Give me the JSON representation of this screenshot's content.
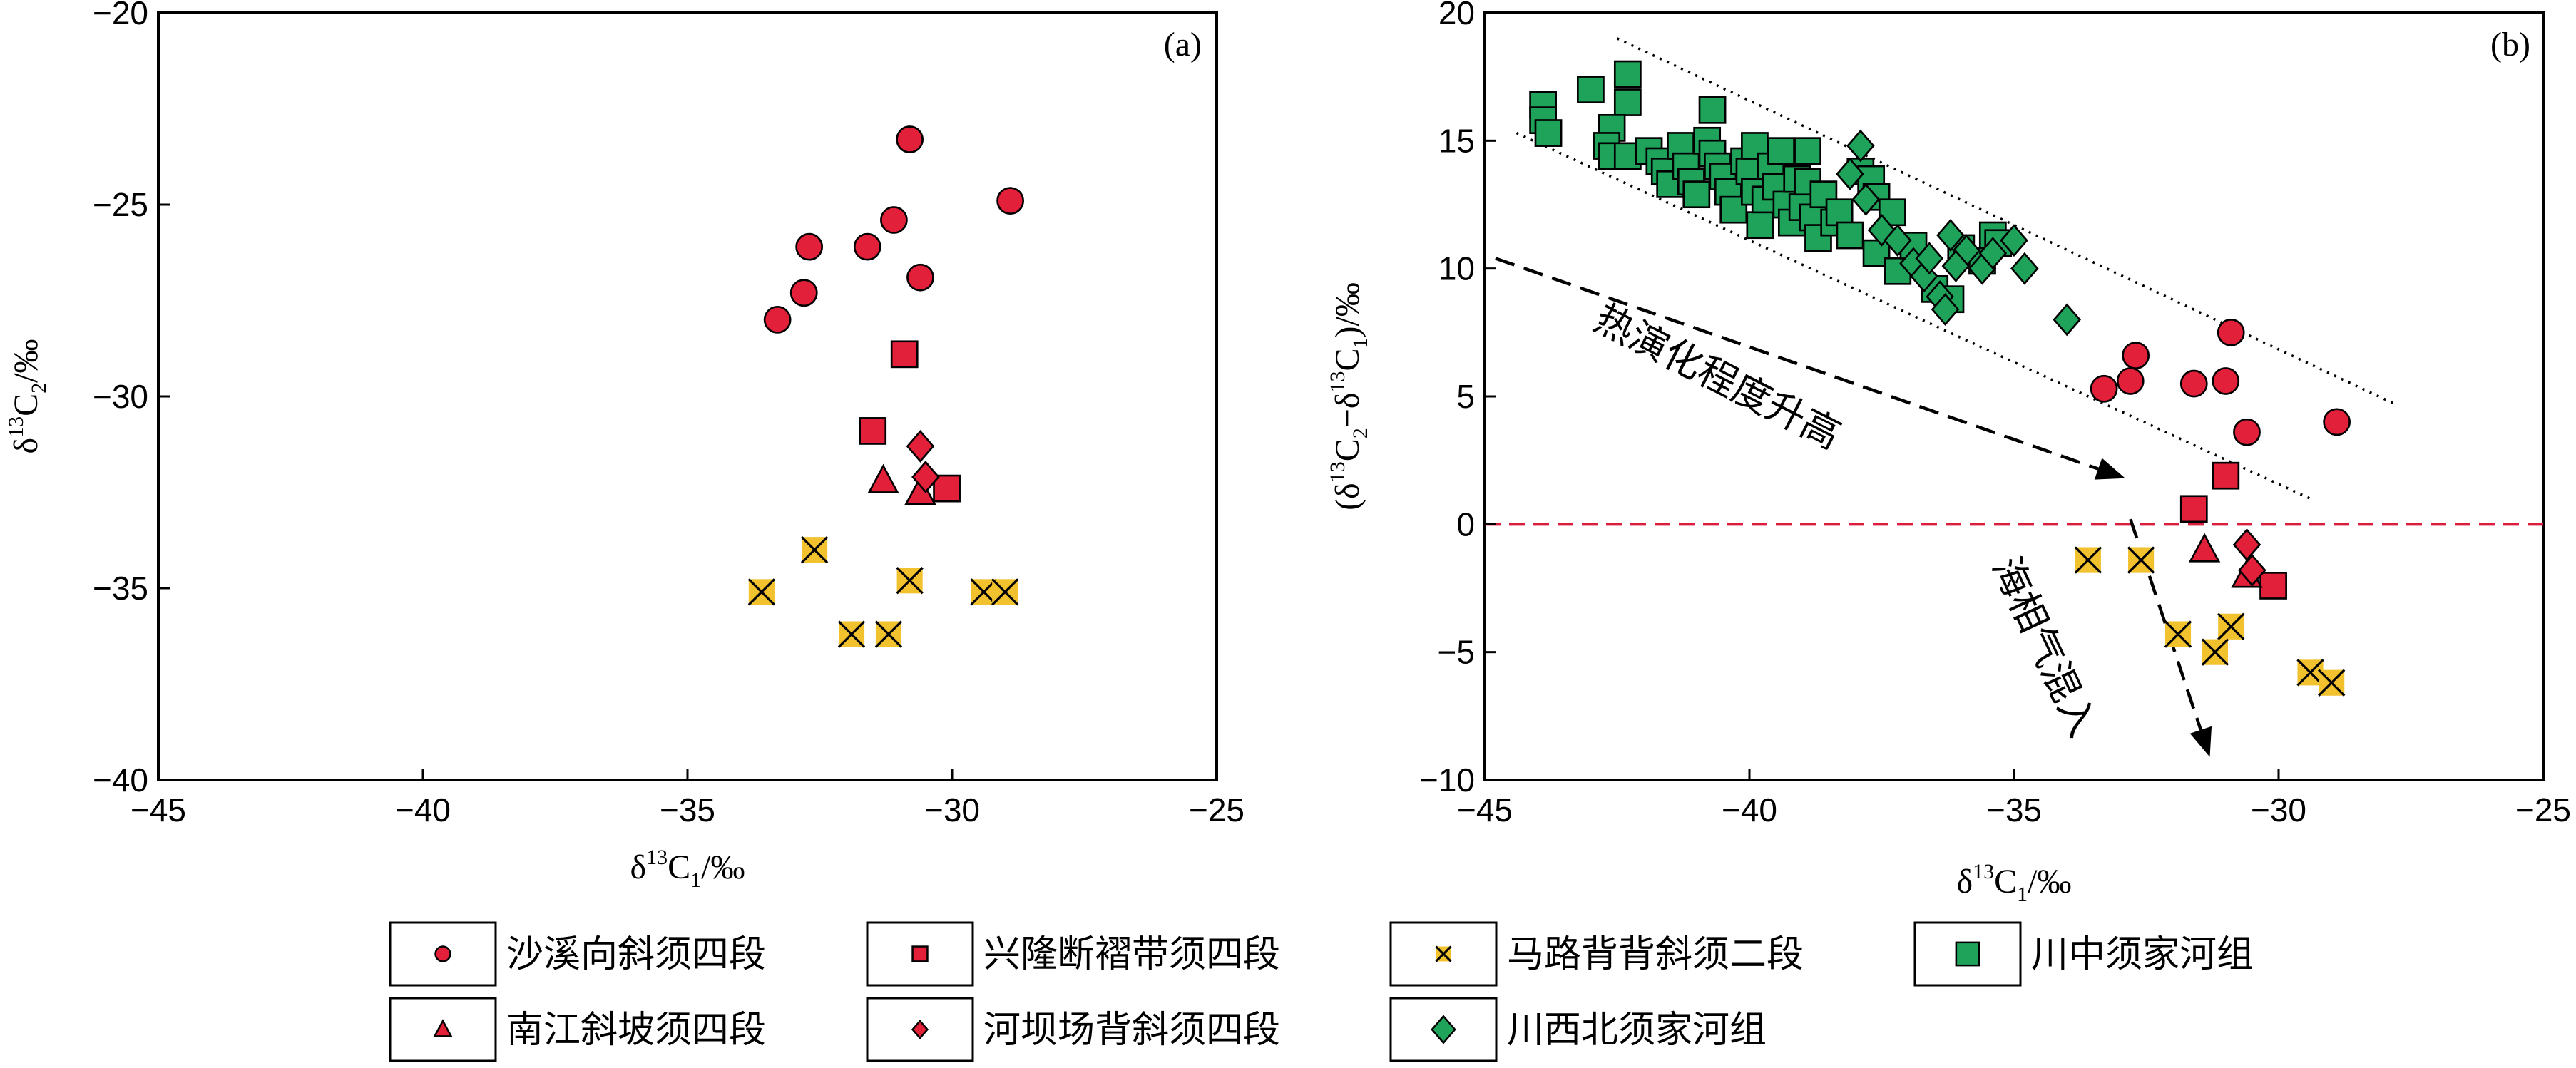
{
  "colors": {
    "red": "#e2203a",
    "yellow": "#f2c12e",
    "green": "#1fa35a",
    "dashed_zero": "#d81e3c",
    "axis": "#000000"
  },
  "chart_data": [
    {
      "panel": "a",
      "panel_tag": "(a)",
      "type": "scatter",
      "xlabel_base": "δ",
      "xlabel_sup": "13",
      "xlabel_main": "C",
      "xlabel_sub": "1",
      "xlabel_tail": "/‰",
      "ylabel_base": "δ",
      "ylabel_sup": "13",
      "ylabel_main": "C",
      "ylabel_sub": "2",
      "ylabel_tail": "/‰",
      "xlim": [
        -45,
        -25
      ],
      "ylim": [
        -40,
        -20
      ],
      "xticks": [
        -45,
        -40,
        -35,
        -30,
        -25
      ],
      "yticks": [
        -40,
        -35,
        -30,
        -25,
        -20
      ],
      "series": [
        {
          "key": "shaxi",
          "marker": "circle",
          "color": "red",
          "points": [
            [
              -30.8,
              -23.3
            ],
            [
              -28.9,
              -24.9
            ],
            [
              -31.1,
              -25.4
            ],
            [
              -32.7,
              -26.1
            ],
            [
              -31.6,
              -26.1
            ],
            [
              -30.6,
              -26.9
            ],
            [
              -32.8,
              -27.3
            ],
            [
              -33.3,
              -28.0
            ]
          ]
        },
        {
          "key": "xinglong",
          "marker": "square",
          "color": "red",
          "points": [
            [
              -30.9,
              -28.9
            ],
            [
              -31.5,
              -30.9
            ],
            [
              -30.1,
              -32.4
            ]
          ]
        },
        {
          "key": "nanjiang",
          "marker": "triangle",
          "color": "red",
          "points": [
            [
              -31.3,
              -32.2
            ],
            [
              -30.6,
              -32.5
            ]
          ]
        },
        {
          "key": "heba",
          "marker": "diamond",
          "color": "red",
          "points": [
            [
              -30.6,
              -31.3
            ],
            [
              -30.5,
              -32.1
            ]
          ]
        },
        {
          "key": "malu",
          "marker": "xsquare",
          "color": "yellow",
          "points": [
            [
              -33.6,
              -35.1
            ],
            [
              -32.6,
              -34.0
            ],
            [
              -30.8,
              -34.8
            ],
            [
              -31.9,
              -36.2
            ],
            [
              -31.2,
              -36.2
            ],
            [
              -29.4,
              -35.1
            ],
            [
              -29.0,
              -35.1
            ]
          ]
        }
      ]
    },
    {
      "panel": "b",
      "panel_tag": "(b)",
      "type": "scatter",
      "xlabel_base": "δ",
      "xlabel_sup": "13",
      "xlabel_main": "C",
      "xlabel_sub": "1",
      "xlabel_tail": "/‰",
      "ylabel_open": "(δ",
      "ylabel_sup1": "13",
      "ylabel_c1": "C",
      "ylabel_sub1": "2",
      "ylabel_mid": "−δ",
      "ylabel_sup2": "13",
      "ylabel_c2": "C",
      "ylabel_sub2": "1",
      "ylabel_tail": ")/‰",
      "xlim": [
        -45,
        -25
      ],
      "ylim": [
        -10,
        20
      ],
      "xticks": [
        -45,
        -40,
        -35,
        -30,
        -25
      ],
      "yticks": [
        -10,
        -5,
        0,
        5,
        10,
        15,
        20
      ],
      "zero_line": 0,
      "guide_lines": [
        {
          "x1": -42.5,
          "y1": 19.0,
          "x2": -27.8,
          "y2": 4.7
        },
        {
          "x1": -44.4,
          "y1": 15.3,
          "x2": -29.4,
          "y2": 1.0
        }
      ],
      "arrows": [
        {
          "x1": -44.8,
          "y1": 10.4,
          "x2": -32.9,
          "y2": 1.8
        },
        {
          "x1": -32.8,
          "y1": 0.2,
          "x2": -31.3,
          "y2": -9.1
        }
      ],
      "annotations": {
        "thermal": "热演化程度升高",
        "marine": "海相气混入"
      },
      "series": [
        {
          "key": "shaxi",
          "marker": "circle",
          "color": "red",
          "points": [
            [
              -30.9,
              7.5
            ],
            [
              -32.7,
              6.6
            ],
            [
              -32.8,
              5.6
            ],
            [
              -33.3,
              5.3
            ],
            [
              -31.6,
              5.5
            ],
            [
              -31.0,
              5.6
            ],
            [
              -30.6,
              3.6
            ],
            [
              -28.9,
              4.0
            ]
          ]
        },
        {
          "key": "xinglong",
          "marker": "square",
          "color": "red",
          "points": [
            [
              -31.6,
              0.6
            ],
            [
              -31.0,
              1.9
            ],
            [
              -30.1,
              -2.4
            ]
          ]
        },
        {
          "key": "nanjiang",
          "marker": "triangle",
          "color": "red",
          "points": [
            [
              -31.4,
              -1.0
            ],
            [
              -30.6,
              -2.0
            ]
          ]
        },
        {
          "key": "heba",
          "marker": "diamond",
          "color": "red",
          "points": [
            [
              -30.6,
              -0.8
            ],
            [
              -30.5,
              -1.8
            ]
          ]
        },
        {
          "key": "malu",
          "marker": "xsquare",
          "color": "yellow",
          "points": [
            [
              -33.6,
              -1.4
            ],
            [
              -32.6,
              -1.4
            ],
            [
              -31.9,
              -4.3
            ],
            [
              -30.9,
              -4.0
            ],
            [
              -31.2,
              -5.0
            ],
            [
              -29.4,
              -5.8
            ],
            [
              -29.0,
              -6.2
            ]
          ]
        },
        {
          "key": "chuanzhong",
          "marker": "square",
          "color": "green",
          "points": [
            [
              -43.9,
              16.4
            ],
            [
              -43.9,
              15.8
            ],
            [
              -43.8,
              15.3
            ],
            [
              -43.0,
              17.0
            ],
            [
              -42.3,
              17.6
            ],
            [
              -42.3,
              16.5
            ],
            [
              -42.6,
              15.5
            ],
            [
              -42.7,
              14.8
            ],
            [
              -42.6,
              14.4
            ],
            [
              -42.3,
              14.4
            ],
            [
              -41.9,
              14.6
            ],
            [
              -41.7,
              14.2
            ],
            [
              -41.6,
              13.8
            ],
            [
              -41.5,
              13.3
            ],
            [
              -41.3,
              14.8
            ],
            [
              -41.2,
              14.0
            ],
            [
              -41.1,
              13.4
            ],
            [
              -41.0,
              12.9
            ],
            [
              -40.8,
              15.0
            ],
            [
              -40.7,
              16.2
            ],
            [
              -40.7,
              14.5
            ],
            [
              -40.6,
              14.0
            ],
            [
              -40.5,
              13.6
            ],
            [
              -40.4,
              13.0
            ],
            [
              -40.3,
              12.3
            ],
            [
              -40.1,
              14.2
            ],
            [
              -40.0,
              13.8
            ],
            [
              -39.9,
              14.8
            ],
            [
              -39.9,
              13.0
            ],
            [
              -39.8,
              11.7
            ],
            [
              -39.7,
              12.7
            ],
            [
              -39.6,
              14.0
            ],
            [
              -39.5,
              13.2
            ],
            [
              -39.4,
              14.6
            ],
            [
              -39.3,
              12.5
            ],
            [
              -39.2,
              11.8
            ],
            [
              -39.1,
              13.5
            ],
            [
              -39.0,
              12.4
            ],
            [
              -38.9,
              14.6
            ],
            [
              -38.9,
              13.4
            ],
            [
              -38.8,
              12.0
            ],
            [
              -38.7,
              11.2
            ],
            [
              -38.6,
              12.9
            ],
            [
              -38.4,
              11.8
            ],
            [
              -38.3,
              12.2
            ],
            [
              -38.1,
              11.3
            ],
            [
              -37.9,
              13.8
            ],
            [
              -37.7,
              13.5
            ],
            [
              -37.6,
              12.8
            ],
            [
              -37.6,
              10.6
            ],
            [
              -37.3,
              12.2
            ],
            [
              -37.2,
              9.9
            ],
            [
              -36.9,
              10.9
            ],
            [
              -36.5,
              9.2
            ],
            [
              -36.2,
              8.8
            ],
            [
              -36.0,
              10.8
            ],
            [
              -35.6,
              10.3
            ],
            [
              -35.4,
              11.3
            ],
            [
              -35.3,
              11.0
            ]
          ]
        },
        {
          "key": "chuanxibei",
          "marker": "diamond",
          "color": "green",
          "points": [
            [
              -37.9,
              14.8
            ],
            [
              -38.1,
              13.7
            ],
            [
              -37.8,
              12.7
            ],
            [
              -37.5,
              11.5
            ],
            [
              -37.2,
              11.1
            ],
            [
              -36.9,
              10.2
            ],
            [
              -36.7,
              9.7
            ],
            [
              -36.4,
              8.9
            ],
            [
              -36.3,
              8.4
            ],
            [
              -36.2,
              11.3
            ],
            [
              -35.9,
              10.7
            ],
            [
              -35.6,
              10.0
            ],
            [
              -35.4,
              10.6
            ],
            [
              -35.0,
              11.1
            ],
            [
              -34.8,
              10.0
            ],
            [
              -34.0,
              8.0
            ],
            [
              -36.6,
              10.4
            ],
            [
              -36.1,
              10.1
            ]
          ]
        }
      ]
    }
  ],
  "legend": {
    "entries": [
      {
        "key": "shaxi",
        "label": "沙溪向斜须四段",
        "marker": "circle",
        "color": "red"
      },
      {
        "key": "xinglong",
        "label": "兴隆断褶带须四段",
        "marker": "square",
        "color": "red"
      },
      {
        "key": "malu",
        "label": "马路背背斜须二段",
        "marker": "xsquare",
        "color": "yellow"
      },
      {
        "key": "chuanzhong",
        "label": "川中须家河组",
        "marker": "square",
        "color": "green"
      },
      {
        "key": "nanjiang",
        "label": "南江斜坡须四段",
        "marker": "triangle",
        "color": "red"
      },
      {
        "key": "heba",
        "label": "河坝场背斜须四段",
        "marker": "diamond",
        "color": "red"
      },
      {
        "key": "chuanxibei",
        "label": "川西北须家河组",
        "marker": "diamond",
        "color": "green"
      }
    ]
  }
}
